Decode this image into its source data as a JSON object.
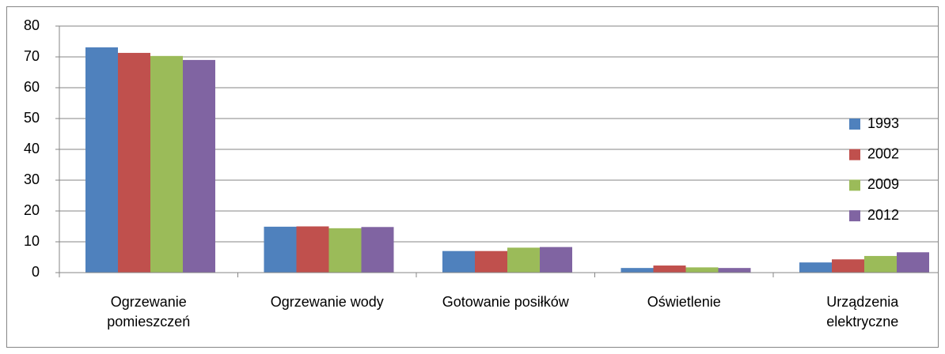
{
  "chart_data": {
    "type": "bar",
    "categories": [
      "Ogrzewanie pomieszczeń",
      "Ogrzewanie wody",
      "Gotowanie posiłków",
      "Oświetlenie",
      "Urządzenia elektryczne"
    ],
    "series": [
      {
        "name": "1993",
        "color": "#4f81bd",
        "values": [
          73.1,
          14.9,
          7.0,
          1.5,
          3.3
        ]
      },
      {
        "name": "2002",
        "color": "#c0504d",
        "values": [
          71.3,
          15.0,
          7.0,
          2.3,
          4.3
        ]
      },
      {
        "name": "2009",
        "color": "#9bbb59",
        "values": [
          70.3,
          14.4,
          8.1,
          1.7,
          5.4
        ]
      },
      {
        "name": "2012",
        "color": "#8064a2",
        "values": [
          69.0,
          14.8,
          8.3,
          1.5,
          6.6
        ]
      }
    ],
    "ylim": [
      0,
      80
    ],
    "yticks": [
      0,
      10,
      20,
      30,
      40,
      50,
      60,
      70,
      80
    ],
    "grid": true,
    "legend": "right"
  }
}
